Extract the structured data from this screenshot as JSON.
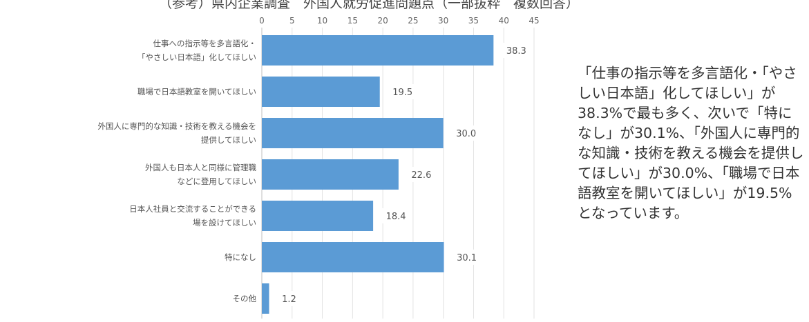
{
  "title": "（参考）県内企業調査　外国人就労促進問題点（一部抜粋　複数回答）",
  "chart_data": {
    "type": "bar",
    "orientation": "horizontal",
    "categories": [
      [
        "仕事への指示等を多言語化・",
        "「やさしい日本語」化してほしい"
      ],
      [
        "職場で日本語教室を開いてほしい"
      ],
      [
        "外国人に専門的な知識・技術を教える機会を",
        "提供してほしい"
      ],
      [
        "外国人も日本人と同様に管理職",
        "などに登用してほしい"
      ],
      [
        "日本人社員と交流することができる",
        "場を設けてほしい"
      ],
      [
        "特になし"
      ],
      [
        "その他"
      ]
    ],
    "values": [
      38.3,
      19.5,
      30.0,
      22.6,
      18.4,
      30.1,
      1.2
    ],
    "value_labels": [
      "38.3",
      "19.5",
      "30.0",
      "22.6",
      "18.4",
      "30.1",
      "1.2"
    ],
    "xticks": [
      "0",
      "5",
      "10",
      "15",
      "20",
      "25",
      "30",
      "35",
      "40",
      "45"
    ],
    "xlim": [
      0,
      45
    ],
    "bar_color": "#5b9bd5",
    "grid": true,
    "legend": "none"
  },
  "note": "「仕事の指示等を多言語化・「やさしい日本語」化してほしい」が38.3%で最も多く、次いで「特になし」が30.1%、「外国人に専門的な知識・技術を教える機会を提供してほしい」が30.0%、「職場で日本語教室を開いてほしい」が19.5%となっています。"
}
